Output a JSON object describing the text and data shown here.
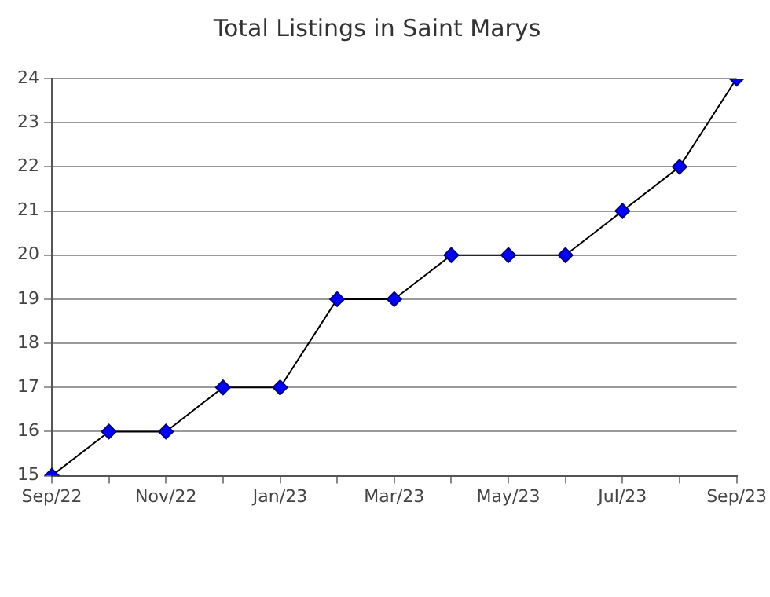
{
  "chart_data": {
    "type": "line",
    "title": "Total Listings in Saint Marys",
    "categories": [
      "Sep/22",
      null,
      "Nov/22",
      null,
      "Jan/23",
      null,
      "Mar/23",
      null,
      "May/23",
      null,
      "Jul/23",
      null,
      "Sep/23"
    ],
    "series": [
      {
        "color": "#0000ff",
        "values": [
          15,
          16,
          16,
          17,
          17,
          19,
          19,
          20,
          20,
          20,
          21,
          22,
          24
        ]
      }
    ],
    "ylim": [
      15,
      24
    ],
    "yticks": [
      15,
      16,
      17,
      18,
      19,
      20,
      21,
      22,
      23,
      24
    ],
    "grid": "y",
    "legend": false,
    "marker": "diamond",
    "line_style": "solid"
  }
}
